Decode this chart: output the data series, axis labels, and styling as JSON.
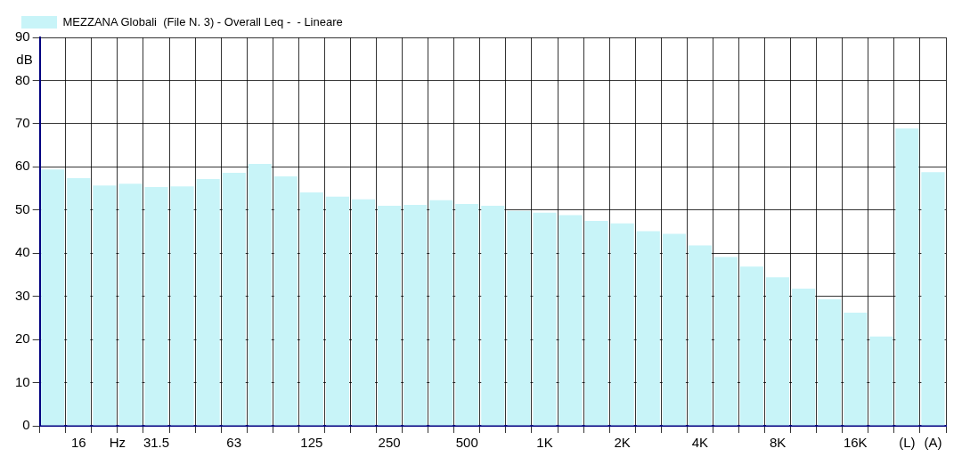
{
  "chart_data": {
    "type": "bar",
    "xlabel": "Hz",
    "ylabel": "dB",
    "categories": [
      null,
      "16",
      null,
      null,
      "31.5",
      null,
      null,
      "63",
      null,
      null,
      "125",
      null,
      null,
      "250",
      null,
      null,
      "500",
      null,
      null,
      "1K",
      null,
      null,
      "2K",
      null,
      null,
      "4K",
      null,
      null,
      "8K",
      null,
      null,
      "16K",
      null,
      "(L)",
      "(A)"
    ],
    "series": [
      {
        "name": "MEZZANA Globali  (File N. 3) - Overall Leq -  - Lineare",
        "color": "#c8f4f8",
        "values": [
          59.4,
          57.4,
          55.7,
          56.1,
          55.3,
          55.5,
          57.2,
          58.6,
          60.7,
          57.8,
          54.1,
          53.1,
          52.5,
          51.0,
          51.2,
          52.3,
          51.4,
          51.0,
          49.8,
          49.4,
          48.8,
          47.5,
          46.9,
          45.1,
          44.5,
          41.8,
          39.1,
          36.9,
          34.4,
          31.8,
          29.3,
          26.2,
          20.7,
          68.9,
          58.8
        ]
      }
    ],
    "ylim": [
      0,
      90
    ],
    "yticks": [
      0,
      10,
      20,
      30,
      40,
      50,
      60,
      70,
      80,
      90
    ],
    "grid": true,
    "legend": "top"
  }
}
